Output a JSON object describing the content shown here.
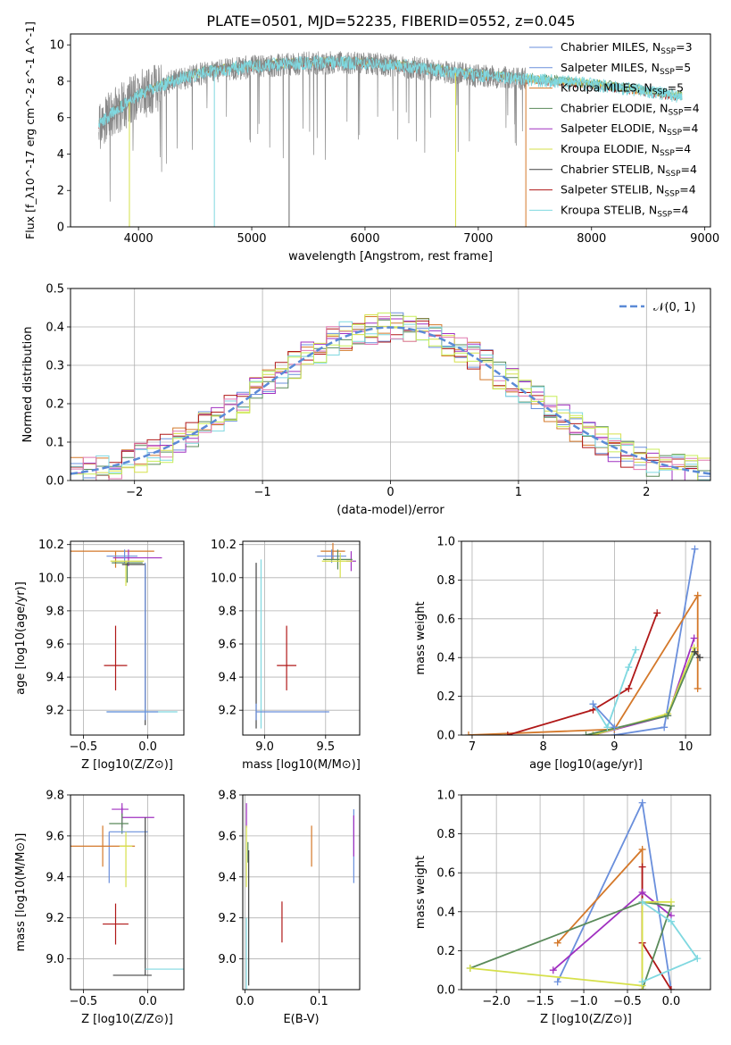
{
  "figure": {
    "title": "PLATE=0501, MJD=52235, FIBERID=0552, z=0.045"
  },
  "series_styles": [
    {
      "name": "Chabrier MILES",
      "nssp": "3",
      "color": "#6a8fdc"
    },
    {
      "name": "Salpeter MILES",
      "nssp": "5",
      "color": "#6a8fdc"
    },
    {
      "name": "Kroupa MILES",
      "nssp": "5",
      "color": "#d4782a"
    },
    {
      "name": "Chabrier ELODIE",
      "nssp": "4",
      "color": "#5a8a5a"
    },
    {
      "name": "Salpeter ELODIE",
      "nssp": "4",
      "color": "#a030c0"
    },
    {
      "name": "Kroupa ELODIE",
      "nssp": "4",
      "color": "#d6e04a"
    },
    {
      "name": "Chabrier STELIB",
      "nssp": "4",
      "color": "#444444"
    },
    {
      "name": "Salpeter STELIB",
      "nssp": "4",
      "color": "#b01818"
    },
    {
      "name": "Kroupa STELIB",
      "nssp": "4",
      "color": "#7fd8e0"
    }
  ],
  "chart_data": [
    {
      "id": "spectrum",
      "type": "line",
      "title": "PLATE=0501, MJD=52235, FIBERID=0552, z=0.045",
      "xlabel": "wavelength [Angstrom, rest frame]",
      "ylabel": "Flux [f_λ10^-17 erg cm^-2 s^-1 A^-1]",
      "xlim": [
        3400,
        9050
      ],
      "ylim": [
        0,
        10.6
      ],
      "xticks": [
        "4000",
        "5000",
        "6000",
        "7000",
        "8000",
        "9000"
      ],
      "yticks": [
        "0",
        "2",
        "4",
        "6",
        "8",
        "10"
      ],
      "legend_position": "top-right",
      "grid": false,
      "data_color": "#888888",
      "continuum": [
        [
          3650,
          5.6
        ],
        [
          3800,
          6.4
        ],
        [
          4000,
          7.2
        ],
        [
          4300,
          8.0
        ],
        [
          4600,
          8.5
        ],
        [
          5000,
          8.8
        ],
        [
          5500,
          9.0
        ],
        [
          6000,
          9.0
        ],
        [
          6500,
          8.7
        ],
        [
          7000,
          8.3
        ],
        [
          7400,
          8.1
        ]
      ],
      "model_continuum": [
        [
          7400,
          8.1
        ],
        [
          8000,
          7.8
        ],
        [
          8500,
          7.4
        ],
        [
          8800,
          7.1
        ]
      ]
    },
    {
      "id": "residuals",
      "type": "bar",
      "xlabel": "(data-model)/error",
      "ylabel": "Normed distribution",
      "xlim": [
        -2.5,
        2.5
      ],
      "ylim": [
        0,
        0.5
      ],
      "xticks": [
        "−2",
        "−1",
        "0",
        "1",
        "2"
      ],
      "yticks": [
        "0.0",
        "0.1",
        "0.2",
        "0.3",
        "0.4",
        "0.5"
      ],
      "grid": true,
      "legend": "𝒩(0, 1)",
      "legend_position": "top-right",
      "reference_curve": "normal(0,1)",
      "bin_width": 0.1
    },
    {
      "id": "age_vs_Z",
      "type": "scatter",
      "xlabel": "Z [log10(Z/Z⊙)]",
      "ylabel": "age [log10(age/yr)]",
      "xlim": [
        -0.6,
        0.28
      ],
      "ylim": [
        9.05,
        10.22
      ],
      "xticks": [
        "−0.5",
        "0.0"
      ],
      "yticks": [
        "9.2",
        "9.4",
        "9.6",
        "9.8",
        "10.0",
        "10.2"
      ],
      "grid": true,
      "points": [
        {
          "series": 2,
          "x": -0.25,
          "y": 10.16,
          "xerr": [
            0.35,
            0.3
          ],
          "yerr": [
            0.1,
            0.0
          ]
        },
        {
          "series": 4,
          "x": -0.15,
          "y": 10.12,
          "xerr": [
            0.12,
            0.26
          ],
          "yerr": [
            0.05,
            0.05
          ]
        },
        {
          "series": 0,
          "x": -0.18,
          "y": 10.13,
          "xerr": [
            0.14,
            0.1
          ],
          "yerr": [
            0.04,
            0.04
          ]
        },
        {
          "series": 3,
          "x": -0.16,
          "y": 10.09,
          "xerr": [
            0.12,
            0.12
          ],
          "yerr": [
            0.12,
            0.0
          ]
        },
        {
          "series": 5,
          "x": -0.17,
          "y": 10.1,
          "xerr": [
            0.12,
            0.14
          ],
          "yerr": [
            0.15,
            0.0
          ]
        },
        {
          "series": 7,
          "x": -0.25,
          "y": 9.47,
          "xerr": [
            0.09,
            0.09
          ],
          "yerr": [
            0.15,
            0.24
          ]
        },
        {
          "series": 6,
          "x": -0.02,
          "y": 10.08,
          "xerr": [
            0.18,
            0.0
          ],
          "yerr": [
            0.97,
            0.0
          ]
        },
        {
          "series": 8,
          "x": -0.02,
          "y": 9.19,
          "xerr": [
            0.3,
            0.25
          ],
          "yerr": [
            0.02,
            0.02
          ]
        },
        {
          "series": 1,
          "x": -0.02,
          "y": 9.19,
          "xerr": [
            0.3,
            0.1
          ],
          "yerr": [
            0.05,
            0.9
          ]
        }
      ]
    },
    {
      "id": "age_vs_mass",
      "type": "scatter",
      "xlabel": "mass [log10(M/M⊙)]",
      "ylabel": "",
      "xlim": [
        8.82,
        9.78
      ],
      "ylim": [
        9.05,
        10.22
      ],
      "xticks": [
        "9.0",
        "9.5"
      ],
      "yticks": [
        "9.2",
        "9.4",
        "9.6",
        "9.8",
        "10.0",
        "10.2"
      ],
      "grid": true,
      "points": [
        {
          "series": 2,
          "x": 9.56,
          "y": 10.16,
          "xerr": [
            0.1,
            0.1
          ],
          "yerr": [
            0.05,
            0.05
          ]
        },
        {
          "series": 4,
          "x": 9.71,
          "y": 10.1,
          "xerr": [
            0.04,
            0.04
          ],
          "yerr": [
            0.06,
            0.06
          ]
        },
        {
          "series": 0,
          "x": 9.55,
          "y": 10.13,
          "xerr": [
            0.12,
            0.12
          ],
          "yerr": [
            0.04,
            0.04
          ]
        },
        {
          "series": 3,
          "x": 9.6,
          "y": 10.11,
          "xerr": [
            0.12,
            0.12
          ],
          "yerr": [
            0.06,
            0.06
          ]
        },
        {
          "series": 5,
          "x": 9.62,
          "y": 10.1,
          "xerr": [
            0.15,
            0.1
          ],
          "yerr": [
            0.1,
            0.05
          ]
        },
        {
          "series": 7,
          "x": 9.18,
          "y": 9.47,
          "xerr": [
            0.08,
            0.08
          ],
          "yerr": [
            0.15,
            0.24
          ]
        },
        {
          "series": 6,
          "x": 8.93,
          "y": 9.19,
          "xerr": [
            0.0,
            0.0
          ],
          "yerr": [
            0.1,
            0.9
          ]
        },
        {
          "series": 8,
          "x": 8.97,
          "y": 9.19,
          "xerr": [
            0.0,
            0.0
          ],
          "yerr": [
            0.1,
            0.92
          ]
        },
        {
          "series": 1,
          "x": 8.93,
          "y": 9.19,
          "xerr": [
            0.0,
            0.6
          ],
          "yerr": [
            0.05,
            0.05
          ]
        }
      ]
    },
    {
      "id": "mass_weight_vs_age",
      "type": "line",
      "xlabel": "age [log10(age/yr)]",
      "ylabel": "mass weight",
      "xlim": [
        6.85,
        10.35
      ],
      "ylim": [
        0,
        1.0
      ],
      "xticks": [
        "7",
        "8",
        "9",
        "10"
      ],
      "yticks": [
        "0.0",
        "0.2",
        "0.4",
        "0.6",
        "0.8",
        "1.0"
      ],
      "grid": true,
      "series": [
        {
          "style": 0,
          "x": [
            9.0,
            9.7,
            10.13
          ],
          "y": [
            0.0,
            0.04,
            0.96
          ]
        },
        {
          "style": 2,
          "x": [
            6.95,
            9.0,
            10.17
          ],
          "y": [
            0.0,
            0.03,
            0.72
          ]
        },
        {
          "style": 2,
          "x": [
            10.17,
            10.17
          ],
          "y": [
            0.24,
            0.72
          ]
        },
        {
          "style": 7,
          "x": [
            7.5,
            8.7,
            9.2,
            9.6
          ],
          "y": [
            0.0,
            0.13,
            0.24,
            0.63
          ]
        },
        {
          "style": 4,
          "x": [
            8.7,
            9.75,
            10.12
          ],
          "y": [
            0.0,
            0.1,
            0.5
          ]
        },
        {
          "style": 5,
          "x": [
            8.7,
            9.75,
            10.12
          ],
          "y": [
            0.0,
            0.11,
            0.45
          ]
        },
        {
          "style": 3,
          "x": [
            8.6,
            9.75,
            10.13
          ],
          "y": [
            0.0,
            0.1,
            0.43
          ]
        },
        {
          "style": 6,
          "x": [
            10.13,
            10.2
          ],
          "y": [
            0.43,
            0.4
          ]
        },
        {
          "style": 8,
          "x": [
            8.7,
            8.9,
            9.2,
            9.3
          ],
          "y": [
            0.16,
            0.04,
            0.35,
            0.44
          ]
        },
        {
          "style": 1,
          "x": [
            8.7,
            9.0
          ],
          "y": [
            0.16,
            0.04
          ]
        }
      ]
    },
    {
      "id": "mass_vs_Z",
      "type": "scatter",
      "xlabel": "Z [log10(Z/Z⊙)]",
      "ylabel": "mass [log10(M/M⊙)]",
      "xlim": [
        -0.6,
        0.28
      ],
      "ylim": [
        8.85,
        9.8
      ],
      "xticks": [
        "−0.5",
        "0.0"
      ],
      "yticks": [
        "9.0",
        "9.2",
        "9.4",
        "9.6",
        "9.8"
      ],
      "grid": true,
      "points": [
        {
          "series": 4,
          "x": -0.2,
          "y": 9.73,
          "xerr": [
            0.08,
            0.05
          ],
          "yerr": [
            0.03,
            0.03
          ]
        },
        {
          "series": 4,
          "x": -0.2,
          "y": 9.69,
          "xerr": [
            0.0,
            0.25
          ],
          "yerr": [
            0.05,
            0.05
          ]
        },
        {
          "series": 3,
          "x": -0.2,
          "y": 9.66,
          "xerr": [
            0.1,
            0.05
          ],
          "yerr": [
            0.05,
            0.05
          ]
        },
        {
          "series": 0,
          "x": -0.3,
          "y": 9.62,
          "xerr": [
            0.0,
            0.3
          ],
          "yerr": [
            0.25,
            0.0
          ]
        },
        {
          "series": 2,
          "x": -0.35,
          "y": 9.55,
          "xerr": [
            0.25,
            0.25
          ],
          "yerr": [
            0.1,
            0.1
          ]
        },
        {
          "series": 5,
          "x": -0.17,
          "y": 9.55,
          "xerr": [
            0.05,
            0.05
          ],
          "yerr": [
            0.2,
            0.07
          ]
        },
        {
          "series": 7,
          "x": -0.25,
          "y": 9.17,
          "xerr": [
            0.1,
            0.1
          ],
          "yerr": [
            0.1,
            0.1
          ]
        },
        {
          "series": 6,
          "x": -0.02,
          "y": 8.92,
          "xerr": [
            0.25,
            0.05
          ],
          "yerr": [
            0.0,
            0.77
          ]
        },
        {
          "series": 8,
          "x": -0.02,
          "y": 8.95,
          "xerr": [
            0.0,
            0.3
          ],
          "yerr": [
            0.0,
            0.0
          ]
        }
      ]
    },
    {
      "id": "mass_vs_ebv",
      "type": "scatter",
      "xlabel": "E(B-V)",
      "ylabel": "",
      "xlim": [
        -0.003,
        0.155
      ],
      "ylim": [
        8.85,
        9.8
      ],
      "xticks": [
        "0.0",
        "0.1"
      ],
      "yticks": [
        "9.0",
        "9.2",
        "9.4",
        "9.6",
        "9.8"
      ],
      "grid": true,
      "points": [
        {
          "series": 4,
          "x": 0.002,
          "y": 9.7,
          "xerr": [
            0,
            0
          ],
          "yerr": [
            0.06,
            0.06
          ]
        },
        {
          "series": 3,
          "x": 0.004,
          "y": 9.52,
          "xerr": [
            0,
            0
          ],
          "yerr": [
            0.05,
            0.05
          ]
        },
        {
          "series": 5,
          "x": 0.002,
          "y": 9.5,
          "xerr": [
            0,
            0
          ],
          "yerr": [
            0.15,
            0.15
          ]
        },
        {
          "series": 6,
          "x": 0.005,
          "y": 9.2,
          "xerr": [
            0,
            0
          ],
          "yerr": [
            0.33,
            0.33
          ]
        },
        {
          "series": 8,
          "x": 0.002,
          "y": 9.0,
          "xerr": [
            0,
            0
          ],
          "yerr": [
            0.2,
            0.2
          ]
        },
        {
          "series": 2,
          "x": 0.09,
          "y": 9.55,
          "xerr": [
            0,
            0
          ],
          "yerr": [
            0.1,
            0.1
          ]
        },
        {
          "series": 7,
          "x": 0.05,
          "y": 9.18,
          "xerr": [
            0,
            0
          ],
          "yerr": [
            0.1,
            0.1
          ]
        },
        {
          "series": 0,
          "x": 0.147,
          "y": 9.55,
          "xerr": [
            0,
            0
          ],
          "yerr": [
            0.18,
            0.18
          ]
        },
        {
          "series": 4,
          "x": 0.147,
          "y": 9.6,
          "xerr": [
            0,
            0
          ],
          "yerr": [
            0.1,
            0.1
          ]
        }
      ]
    },
    {
      "id": "mass_weight_vs_Z",
      "type": "line",
      "xlabel": "Z [log10(Z/Z⊙)]",
      "ylabel": "mass weight",
      "xlim": [
        -2.4,
        0.45
      ],
      "ylim": [
        0,
        1.0
      ],
      "xticks": [
        "−2.0",
        "−1.5",
        "−1.0",
        "−0.5",
        "0.0"
      ],
      "yticks": [
        "0.0",
        "0.2",
        "0.4",
        "0.6",
        "0.8",
        "1.0"
      ],
      "grid": true,
      "series": [
        {
          "style": 0,
          "x": [
            -1.3,
            -0.33,
            0.0
          ],
          "y": [
            0.04,
            0.96,
            0.0
          ]
        },
        {
          "style": 2,
          "x": [
            -1.3,
            -0.33,
            -0.33
          ],
          "y": [
            0.24,
            0.72,
            0.0
          ]
        },
        {
          "style": 7,
          "x": [
            -0.33,
            -0.33,
            0.0
          ],
          "y": [
            0.63,
            0.24,
            0.0
          ]
        },
        {
          "style": 4,
          "x": [
            -1.35,
            -0.33,
            0.0
          ],
          "y": [
            0.1,
            0.5,
            0.38
          ]
        },
        {
          "style": 3,
          "x": [
            -2.3,
            -0.33,
            0.0,
            -0.33
          ],
          "y": [
            0.11,
            0.45,
            0.43,
            0.0
          ]
        },
        {
          "style": 5,
          "x": [
            -2.3,
            -0.33,
            -0.33,
            0.0
          ],
          "y": [
            0.11,
            0.02,
            0.45,
            0.45
          ]
        },
        {
          "style": 8,
          "x": [
            -0.33,
            0.0,
            0.3,
            -0.33
          ],
          "y": [
            0.45,
            0.35,
            0.16,
            0.04
          ]
        }
      ]
    }
  ]
}
